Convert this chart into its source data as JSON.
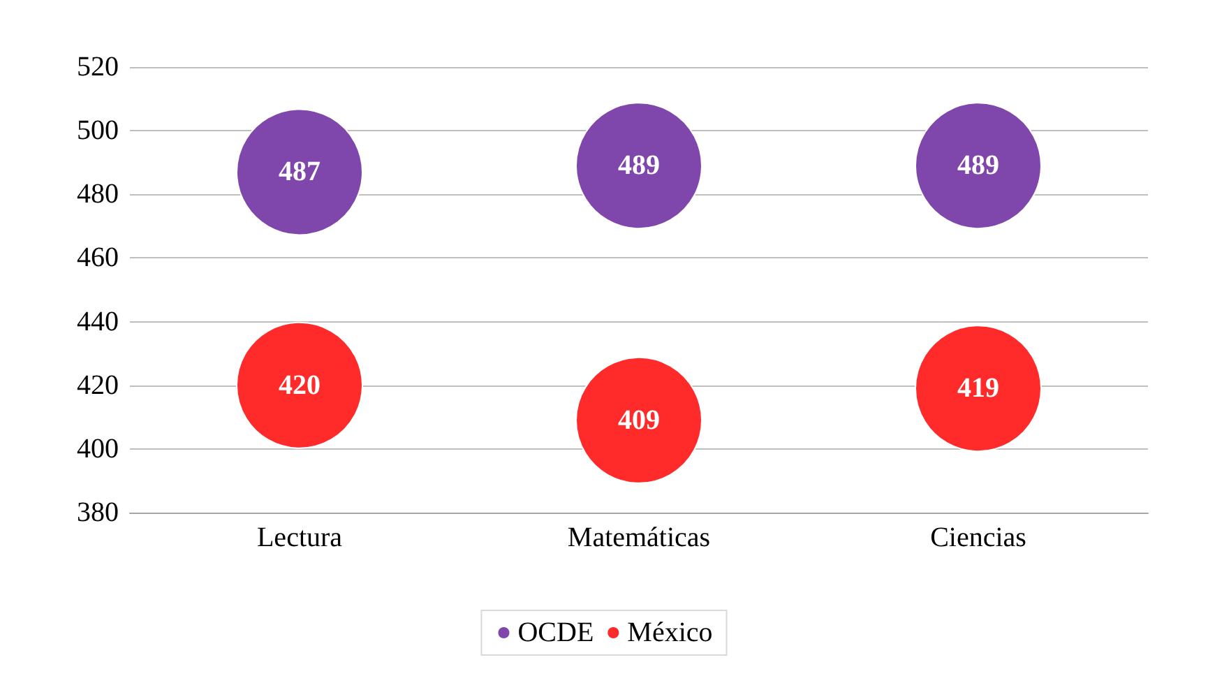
{
  "chart_data": {
    "type": "bubble",
    "categories": [
      "Lectura",
      "Matemáticas",
      "Ciencias"
    ],
    "series": [
      {
        "name": "OCDE",
        "color": "#7f47ab",
        "values": [
          487,
          489,
          489
        ],
        "sizes": [
          1,
          1,
          1
        ]
      },
      {
        "name": "México",
        "color": "#ff2a2a",
        "values": [
          420,
          409,
          419
        ],
        "sizes": [
          1,
          1,
          1
        ]
      }
    ],
    "ylim": [
      380,
      520
    ],
    "yticks": [
      380,
      400,
      420,
      440,
      460,
      480,
      500,
      520
    ],
    "grid": "y",
    "legend": "bottom",
    "data_labels": true
  }
}
